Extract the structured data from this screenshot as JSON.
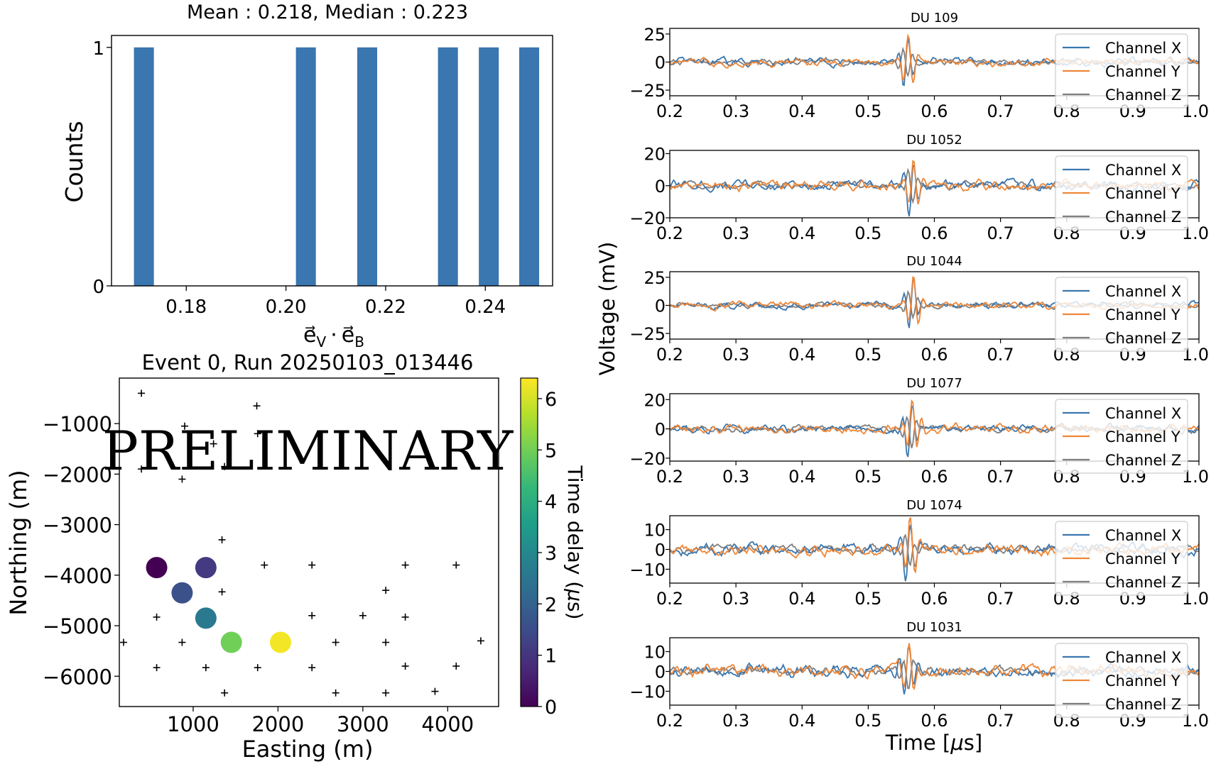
{
  "chart_data": [
    {
      "id": "hist",
      "type": "bar",
      "title": "Mean : 0.218, Median : 0.223",
      "xlabel": "e⃗V · e⃗B",
      "xlabel_parts": {
        "a": "e⃗",
        "a_sub": "V",
        "dot": "·",
        "b": "e⃗",
        "b_sub": "B"
      },
      "ylabel": "Counts",
      "xlim": [
        0.165,
        0.2535
      ],
      "ylim": [
        0,
        1.05
      ],
      "bar_width": 0.004,
      "x": [
        0.1715,
        0.204,
        0.2163,
        0.2325,
        0.2407,
        0.2488
      ],
      "values": [
        1,
        1,
        1,
        1,
        1,
        1
      ],
      "color": "#3a76af",
      "xticks": [
        0.18,
        0.2,
        0.22,
        0.24
      ],
      "xtick_labels": [
        "0.18",
        "0.20",
        "0.22",
        "0.24"
      ],
      "yticks": [
        0,
        1
      ],
      "ytick_labels": [
        "0",
        "1"
      ]
    },
    {
      "id": "map",
      "type": "scatter",
      "title": "Event 0, Run 20250103_013446",
      "xlabel": "Easting (m)",
      "ylabel": "Northing (m)",
      "xlim": [
        130,
        4600
      ],
      "ylim": [
        -6600,
        -100
      ],
      "xticks": [
        1000,
        2000,
        3000,
        4000
      ],
      "xtick_labels": [
        "1000",
        "2000",
        "3000",
        "4000"
      ],
      "yticks": [
        -1000,
        -2000,
        -3000,
        -4000,
        -5000,
        -6000
      ],
      "ytick_labels": [
        "−1000",
        "−2000",
        "−3000",
        "−4000",
        "−5000",
        "−6000"
      ],
      "stations": [
        [
          390,
          -400
        ],
        [
          900,
          -1050
        ],
        [
          1750,
          -650
        ],
        [
          1760,
          -1200
        ],
        [
          1240,
          -1400
        ],
        [
          1370,
          -1850
        ],
        [
          390,
          -1900
        ],
        [
          870,
          -2100
        ],
        [
          1340,
          -3300
        ],
        [
          1840,
          -3800
        ],
        [
          2400,
          -3800
        ],
        [
          3500,
          -3800
        ],
        [
          4100,
          -3800
        ],
        [
          3270,
          -4300
        ],
        [
          1340,
          -4330
        ],
        [
          570,
          -4830
        ],
        [
          2400,
          -4800
        ],
        [
          3000,
          -4800
        ],
        [
          3500,
          -4830
        ],
        [
          180,
          -5330
        ],
        [
          870,
          -5330
        ],
        [
          2680,
          -5330
        ],
        [
          3270,
          -5330
        ],
        [
          4390,
          -5300
        ],
        [
          570,
          -5830
        ],
        [
          1150,
          -5830
        ],
        [
          1760,
          -5830
        ],
        [
          2400,
          -5830
        ],
        [
          3500,
          -5800
        ],
        [
          4100,
          -5800
        ],
        [
          1370,
          -6330
        ],
        [
          2680,
          -6330
        ],
        [
          3270,
          -6330
        ],
        [
          3850,
          -6300
        ]
      ],
      "triggered": [
        {
          "x": 570,
          "y": -3850,
          "delay": 0.0
        },
        {
          "x": 1150,
          "y": -3850,
          "delay": 1.1
        },
        {
          "x": 870,
          "y": -4350,
          "delay": 1.6
        },
        {
          "x": 1150,
          "y": -4850,
          "delay": 2.6
        },
        {
          "x": 1450,
          "y": -5330,
          "delay": 5.0
        },
        {
          "x": 2030,
          "y": -5330,
          "delay": 6.3
        }
      ],
      "colorbar": {
        "label": "Time delay (μs)",
        "label_parts": {
          "pre": "Time delay (",
          "mu": "μ",
          "post": "s)"
        },
        "min": 0,
        "max": 6.4,
        "ticks": [
          0,
          1,
          2,
          3,
          4,
          5,
          6
        ],
        "tick_labels": [
          "0",
          "1",
          "2",
          "3",
          "4",
          "5",
          "6"
        ],
        "colormap": [
          "#440154",
          "#482878",
          "#3e4989",
          "#31688e",
          "#26828e",
          "#1f9e89",
          "#35b779",
          "#6ece58",
          "#b5de2b",
          "#fde725"
        ]
      },
      "watermark": {
        "text": "PRELIMINARY",
        "color": "#e07a62"
      }
    },
    {
      "id": "traces",
      "type": "line",
      "xlabel": "Time [μs]",
      "xlabel_parts": {
        "pre": "Time [",
        "mu": "μ",
        "post": "s]"
      },
      "ylabel": "Voltage (mV)",
      "xlim": [
        0.2,
        1.0
      ],
      "xticks": [
        0.2,
        0.3,
        0.4,
        0.5,
        0.6,
        0.7,
        0.8,
        0.9,
        1.0
      ],
      "xtick_labels": [
        "0.2",
        "0.3",
        "0.4",
        "0.5",
        "0.6",
        "0.7",
        "0.8",
        "0.9",
        "1.0"
      ],
      "series_colors": {
        "X": "#3a76af",
        "Y": "#ef8636",
        "Z": "#7f7f7f"
      },
      "legend_entries": [
        "Channel X",
        "Channel Y",
        "Channel Z"
      ],
      "legend_position": "right",
      "panels": [
        {
          "title": "DU 109",
          "ylim": [
            -30,
            30
          ],
          "yticks": [
            -25,
            0,
            25
          ],
          "ytick_labels": [
            "−25",
            "0",
            "25"
          ],
          "peak": 25,
          "noise": 3.5,
          "pulse_center": 0.557
        },
        {
          "title": "DU 1052",
          "ylim": [
            -20,
            22
          ],
          "yticks": [
            -20,
            0,
            20
          ],
          "ytick_labels": [
            "−20",
            "0",
            "20"
          ],
          "peak": 19,
          "noise": 3.0,
          "pulse_center": 0.565
        },
        {
          "title": "DU 1044",
          "ylim": [
            -30,
            30
          ],
          "yticks": [
            -25,
            0,
            25
          ],
          "ytick_labels": [
            "−25",
            "0",
            "25"
          ],
          "peak": 24,
          "noise": 3.0,
          "pulse_center": 0.565
        },
        {
          "title": "DU 1077",
          "ylim": [
            -22,
            24
          ],
          "yticks": [
            -20,
            0,
            20
          ],
          "ytick_labels": [
            "−20",
            "0",
            "20"
          ],
          "peak": 21,
          "noise": 2.8,
          "pulse_center": 0.563
        },
        {
          "title": "DU 1074",
          "ylim": [
            -17,
            17
          ],
          "yticks": [
            -10,
            0,
            10
          ],
          "ytick_labels": [
            "−10",
            "0",
            "10"
          ],
          "peak": 16,
          "noise": 2.7,
          "pulse_center": 0.56
        },
        {
          "title": "DU 1031",
          "ylim": [
            -17,
            17
          ],
          "yticks": [
            -10,
            0,
            10
          ],
          "ytick_labels": [
            "−10",
            "0",
            "10"
          ],
          "peak": 15,
          "noise": 3.0,
          "pulse_center": 0.558
        }
      ]
    }
  ]
}
